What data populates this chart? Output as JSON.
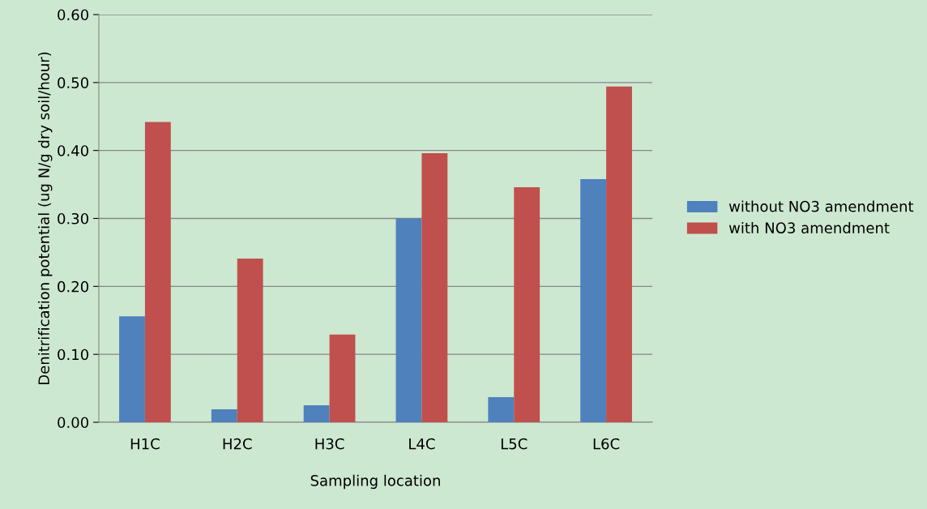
{
  "chart_data": {
    "type": "bar",
    "xlabel": "Sampling location",
    "ylabel": "Denitrification potential (ug N/g dry soil/hour)",
    "categories": [
      "H1C",
      "H2C",
      "H3C",
      "L4C",
      "L5C",
      "L6C"
    ],
    "series": [
      {
        "name": "without NO3 amendment",
        "color": "#4f81bd",
        "values": [
          0.156,
          0.019,
          0.025,
          0.3,
          0.037,
          0.358
        ]
      },
      {
        "name": "with NO3 amendment",
        "color": "#c0504d",
        "values": [
          0.442,
          0.241,
          0.129,
          0.396,
          0.346,
          0.494
        ]
      }
    ],
    "ylim": [
      0,
      0.6
    ],
    "yticks": [
      {
        "value": 0,
        "label": "0.00"
      },
      {
        "value": 0.1,
        "label": "0.10"
      },
      {
        "value": 0.2,
        "label": "0.20"
      },
      {
        "value": 0.3,
        "label": "0.30"
      },
      {
        "value": 0.4,
        "label": "0.40"
      },
      {
        "value": 0.5,
        "label": "0.50"
      },
      {
        "value": 0.6,
        "label": "0.60"
      }
    ],
    "grid": "y",
    "legend": "right"
  }
}
